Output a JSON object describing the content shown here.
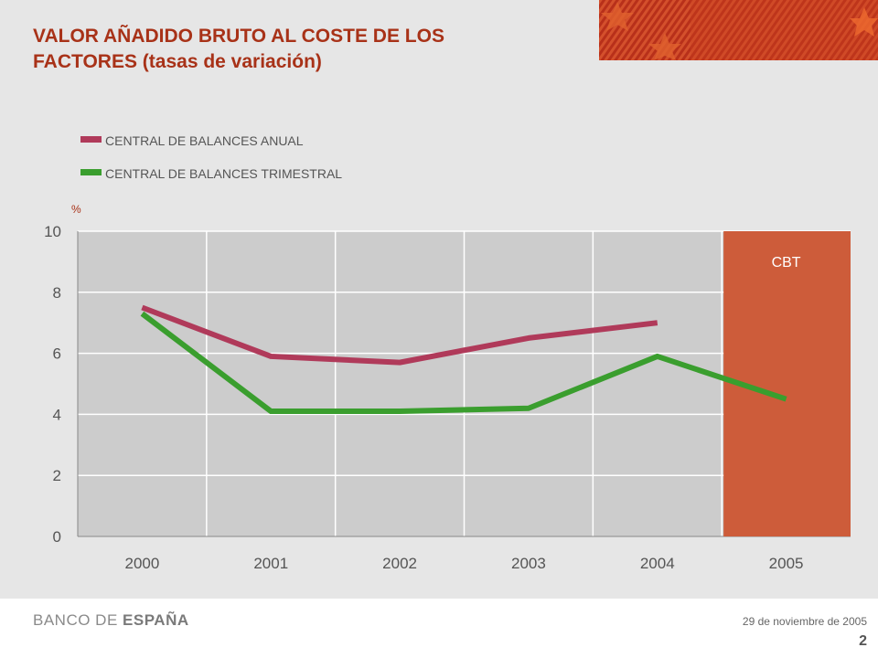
{
  "header": {
    "title_line1": "VALOR AÑADIDO BRUTO AL COSTE DE LOS",
    "title_line2_bold": "FACTORES",
    "title_line2_rest": " (tasas de variación)"
  },
  "footer": {
    "logo_part1": "BANCO DE ",
    "logo_part2": "ESPAÑA",
    "date": "29 de noviembre de 2005",
    "page": "2"
  },
  "colors": {
    "title": "#a83218",
    "plot_bg": "#cccccc",
    "highlight": "#cd5c3a",
    "anual": "#b03a5a",
    "trimestral": "#3a9e2e"
  },
  "chart_data": {
    "type": "line",
    "ylabel": "%",
    "ylim": [
      0,
      10
    ],
    "yticks": [
      0,
      2,
      4,
      6,
      8,
      10
    ],
    "categories": [
      "2000",
      "2001",
      "2002",
      "2003",
      "2004",
      "2005"
    ],
    "highlight": {
      "category": "2005",
      "label": "CBT"
    },
    "series": [
      {
        "name": "CENTRAL DE BALANCES ANUAL",
        "color": "#b03a5a",
        "values": [
          7.5,
          5.9,
          5.7,
          6.5,
          7.0,
          null
        ]
      },
      {
        "name": "CENTRAL DE BALANCES TRIMESTRAL",
        "color": "#3a9e2e",
        "values": [
          7.3,
          4.1,
          4.1,
          4.2,
          5.9,
          4.5
        ]
      }
    ],
    "legend_position": "top-left",
    "grid": true
  }
}
